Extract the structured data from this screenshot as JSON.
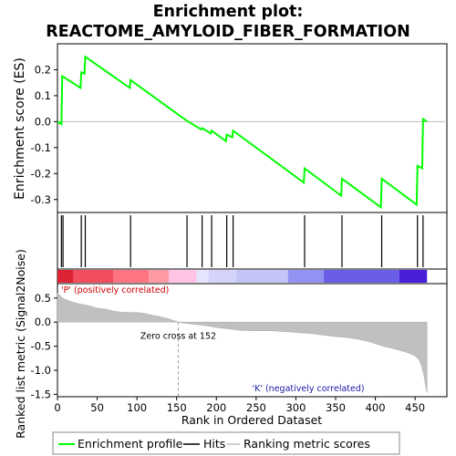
{
  "chart_data": {
    "type": "line",
    "title_line1": "Enrichment plot:",
    "title_line2": "REACTOME_AMYLOID_FIBER_FORMATION",
    "xlabel": "Rank in Ordered Dataset",
    "ylabel_es": "Enrichment score (ES)",
    "ylabel_metric": "Ranked list metric (Signal2Noise)",
    "xlim": [
      0,
      490
    ],
    "es_ylim": [
      -0.35,
      0.3
    ],
    "es_yticks": [
      -0.3,
      -0.2,
      -0.1,
      0.0,
      0.1,
      0.2
    ],
    "es_ytick_labels": [
      "-0.3",
      "-0.2",
      "-0.1",
      "0.0",
      "0.1",
      "0.2"
    ],
    "metric_ylim": [
      -1.55,
      0.8
    ],
    "metric_yticks": [
      -1.5,
      -1.0,
      -0.5,
      0.0,
      0.5
    ],
    "metric_ytick_labels": [
      "-1.5",
      "-1.0",
      "-0.5",
      "0.0",
      "0.5"
    ],
    "xticks": [
      0,
      50,
      100,
      150,
      200,
      250,
      300,
      350,
      400,
      450
    ],
    "xtick_labels": [
      "0",
      "50",
      "100",
      "150",
      "200",
      "250",
      "300",
      "350",
      "400",
      "450"
    ],
    "es_color": "#00ff00",
    "hits": [
      5,
      7,
      30,
      35,
      92,
      163,
      182,
      194,
      213,
      221,
      311,
      358,
      408,
      453,
      460
    ],
    "es_curve": [
      [
        0,
        0.0
      ],
      [
        5,
        -0.01
      ],
      [
        6,
        0.175
      ],
      [
        29,
        0.13
      ],
      [
        30,
        0.19
      ],
      [
        34,
        0.185
      ],
      [
        35,
        0.25
      ],
      [
        91,
        0.13
      ],
      [
        92,
        0.16
      ],
      [
        162,
        0.005
      ],
      [
        181,
        -0.03
      ],
      [
        182,
        -0.025
      ],
      [
        193,
        -0.045
      ],
      [
        194,
        -0.035
      ],
      [
        212,
        -0.075
      ],
      [
        213,
        -0.05
      ],
      [
        220,
        -0.06
      ],
      [
        221,
        -0.035
      ],
      [
        310,
        -0.235
      ],
      [
        311,
        -0.18
      ],
      [
        357,
        -0.285
      ],
      [
        358,
        -0.22
      ],
      [
        407,
        -0.33
      ],
      [
        408,
        -0.22
      ],
      [
        452,
        -0.32
      ],
      [
        453,
        -0.17
      ],
      [
        459,
        -0.18
      ],
      [
        460,
        0.01
      ],
      [
        465,
        0.0
      ]
    ],
    "metric_curve": [
      [
        0,
        0.6
      ],
      [
        2,
        0.57
      ],
      [
        5,
        0.52
      ],
      [
        10,
        0.47
      ],
      [
        15,
        0.44
      ],
      [
        20,
        0.41
      ],
      [
        25,
        0.39
      ],
      [
        30,
        0.37
      ],
      [
        40,
        0.34
      ],
      [
        50,
        0.29
      ],
      [
        60,
        0.27
      ],
      [
        70,
        0.23
      ],
      [
        80,
        0.21
      ],
      [
        90,
        0.2
      ],
      [
        100,
        0.2
      ],
      [
        110,
        0.18
      ],
      [
        120,
        0.14
      ],
      [
        130,
        0.11
      ],
      [
        140,
        0.07
      ],
      [
        147,
        0.03
      ],
      [
        152,
        0.0
      ],
      [
        160,
        -0.02
      ],
      [
        175,
        -0.05
      ],
      [
        190,
        -0.08
      ],
      [
        200,
        -0.11
      ],
      [
        215,
        -0.14
      ],
      [
        230,
        -0.17
      ],
      [
        250,
        -0.18
      ],
      [
        270,
        -0.18
      ],
      [
        290,
        -0.2
      ],
      [
        305,
        -0.22
      ],
      [
        320,
        -0.24
      ],
      [
        335,
        -0.27
      ],
      [
        350,
        -0.3
      ],
      [
        365,
        -0.32
      ],
      [
        380,
        -0.36
      ],
      [
        395,
        -0.42
      ],
      [
        410,
        -0.5
      ],
      [
        425,
        -0.56
      ],
      [
        440,
        -0.63
      ],
      [
        450,
        -0.7
      ],
      [
        455,
        -0.78
      ],
      [
        458,
        -0.9
      ],
      [
        461,
        -1.1
      ],
      [
        463,
        -1.3
      ],
      [
        465,
        -1.47
      ]
    ],
    "colorbar_segments": [
      {
        "from": 0,
        "to": 20,
        "color": "#dd2233"
      },
      {
        "from": 20,
        "to": 70,
        "color": "#f24d5e"
      },
      {
        "from": 70,
        "to": 115,
        "color": "#ff7480"
      },
      {
        "from": 115,
        "to": 140,
        "color": "#ff9aa4"
      },
      {
        "from": 140,
        "to": 175,
        "color": "#ffc4e4"
      },
      {
        "from": 175,
        "to": 190,
        "color": "#e4e4ff"
      },
      {
        "from": 190,
        "to": 225,
        "color": "#d4d4fa"
      },
      {
        "from": 225,
        "to": 290,
        "color": "#c4c4f8"
      },
      {
        "from": 290,
        "to": 335,
        "color": "#9292f2"
      },
      {
        "from": 335,
        "to": 430,
        "color": "#6a5de6"
      },
      {
        "from": 430,
        "to": 465,
        "color": "#4a1ed8"
      }
    ],
    "zero_cross_label": "Zero cross at 152",
    "zero_cross_x": 152,
    "pos_label": "'P' (positively correlated)",
    "neg_label": "'K' (negatively correlated)",
    "legend": {
      "enrichment": "Enrichment profile",
      "hits": "Hits",
      "ranking": "Ranking metric scores"
    }
  }
}
